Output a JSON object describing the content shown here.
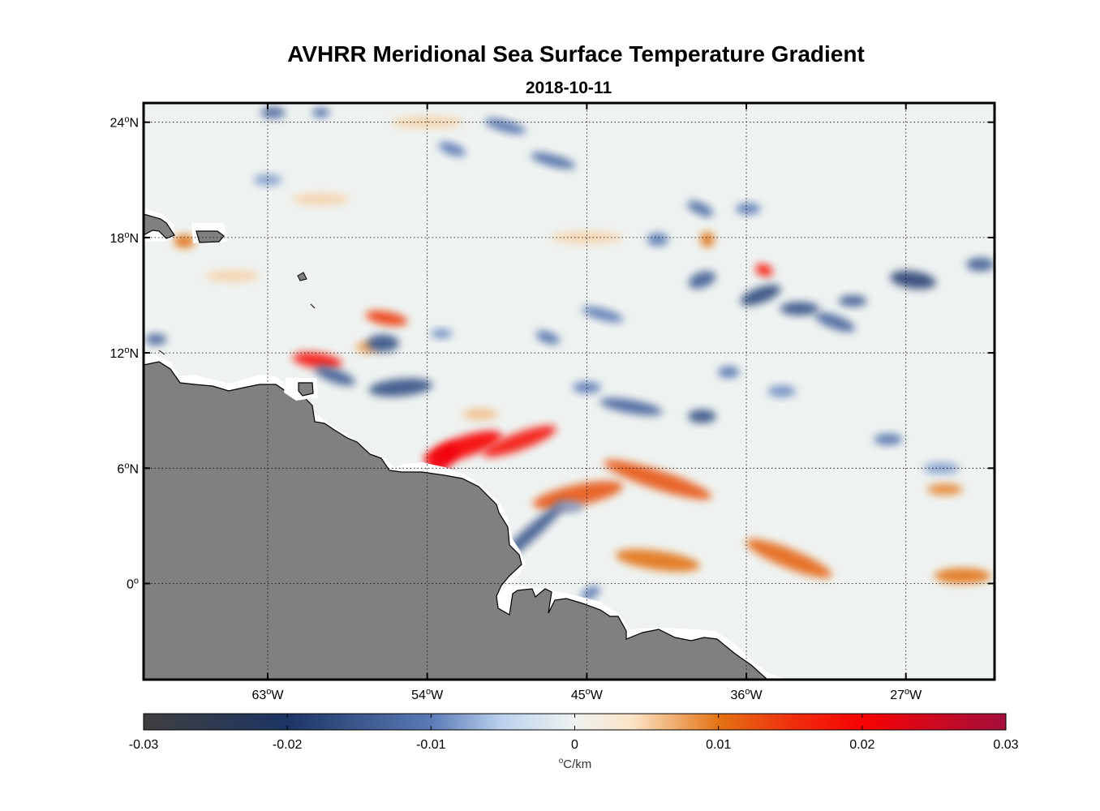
{
  "title": "AVHRR Meridional Sea Surface Temperature Gradient",
  "subtitle": "2018-10-11",
  "map": {
    "lon_range": [
      -70,
      -22
    ],
    "lat_range": [
      -5,
      25
    ],
    "lon_ticks": [
      {
        "value": -63,
        "num": "63",
        "deg": "o",
        "hemi": "W"
      },
      {
        "value": -54,
        "num": "54",
        "deg": "o",
        "hemi": "W"
      },
      {
        "value": -45,
        "num": "45",
        "deg": "o",
        "hemi": "W"
      },
      {
        "value": -36,
        "num": "36",
        "deg": "o",
        "hemi": "W"
      },
      {
        "value": -27,
        "num": "27",
        "deg": "o",
        "hemi": "W"
      }
    ],
    "lat_ticks": [
      {
        "value": 24,
        "num": "24",
        "deg": "o",
        "hemi": "N"
      },
      {
        "value": 18,
        "num": "18",
        "deg": "o",
        "hemi": "N"
      },
      {
        "value": 12,
        "num": "12",
        "deg": "o",
        "hemi": "N"
      },
      {
        "value": 6,
        "num": "6",
        "deg": "o",
        "hemi": "N"
      },
      {
        "value": 0,
        "num": "0",
        "deg": "o",
        "hemi": ""
      }
    ],
    "land_color": "#808080",
    "gradient_features": [
      {
        "lon": -60.2,
        "lat": 11.6,
        "rx": 1.4,
        "ry": 0.4,
        "value": 0.018,
        "angle": -8
      },
      {
        "lon": -56.3,
        "lat": 13.8,
        "rx": 1.2,
        "ry": 0.35,
        "value": 0.014,
        "angle": -10
      },
      {
        "lon": -52.0,
        "lat": 7.1,
        "rx": 2.3,
        "ry": 0.55,
        "value": 0.02,
        "angle": 18
      },
      {
        "lon": -48.8,
        "lat": 7.4,
        "rx": 2.2,
        "ry": 0.45,
        "value": 0.018,
        "angle": 20
      },
      {
        "lon": -53.2,
        "lat": 6.4,
        "rx": 1.2,
        "ry": 0.5,
        "value": 0.021,
        "angle": 45
      },
      {
        "lon": -45.5,
        "lat": 4.6,
        "rx": 2.6,
        "ry": 0.55,
        "value": 0.012,
        "angle": 12
      },
      {
        "lon": -41.0,
        "lat": 5.4,
        "rx": 3.2,
        "ry": 0.5,
        "value": 0.012,
        "angle": -18
      },
      {
        "lon": -41.0,
        "lat": 1.2,
        "rx": 2.4,
        "ry": 0.5,
        "value": 0.01,
        "angle": -8
      },
      {
        "lon": -33.6,
        "lat": 1.3,
        "rx": 2.6,
        "ry": 0.5,
        "value": 0.011,
        "angle": -22
      },
      {
        "lon": -23.8,
        "lat": 0.4,
        "rx": 1.6,
        "ry": 0.4,
        "value": 0.01,
        "angle": 0
      },
      {
        "lon": -24.8,
        "lat": 4.9,
        "rx": 1.0,
        "ry": 0.3,
        "value": 0.009,
        "angle": 0
      },
      {
        "lon": -35.0,
        "lat": 16.3,
        "rx": 0.5,
        "ry": 0.3,
        "value": 0.019,
        "angle": -20
      },
      {
        "lon": -38.2,
        "lat": 17.9,
        "rx": 0.4,
        "ry": 0.4,
        "value": 0.01,
        "angle": 0
      },
      {
        "lon": -67.7,
        "lat": 17.8,
        "rx": 0.6,
        "ry": 0.35,
        "value": 0.01,
        "angle": 0
      },
      {
        "lon": -57.4,
        "lat": 12.3,
        "rx": 0.6,
        "ry": 0.3,
        "value": 0.008,
        "angle": 0
      },
      {
        "lon": -54.0,
        "lat": 24.0,
        "rx": 2.0,
        "ry": 0.3,
        "value": 0.005,
        "angle": 0
      },
      {
        "lon": -60.0,
        "lat": 20.0,
        "rx": 1.6,
        "ry": 0.3,
        "value": 0.005,
        "angle": 0
      },
      {
        "lon": -45.0,
        "lat": 18.0,
        "rx": 2.0,
        "ry": 0.3,
        "value": 0.005,
        "angle": 0
      },
      {
        "lon": -51.0,
        "lat": 8.8,
        "rx": 1.0,
        "ry": 0.3,
        "value": 0.006,
        "angle": 0
      },
      {
        "lon": -65.0,
        "lat": 16.0,
        "rx": 1.5,
        "ry": 0.3,
        "value": 0.005,
        "angle": 0
      },
      {
        "lon": -55.5,
        "lat": 10.2,
        "rx": 1.8,
        "ry": 0.45,
        "value": -0.016,
        "angle": 5
      },
      {
        "lon": -59.2,
        "lat": 10.8,
        "rx": 1.2,
        "ry": 0.35,
        "value": -0.014,
        "angle": -20
      },
      {
        "lon": -56.5,
        "lat": 12.5,
        "rx": 0.9,
        "ry": 0.45,
        "value": -0.016,
        "angle": 0
      },
      {
        "lon": -48.3,
        "lat": 2.5,
        "rx": 2.8,
        "ry": 0.35,
        "value": -0.015,
        "angle": 42
      },
      {
        "lon": -44.8,
        "lat": -0.5,
        "rx": 0.6,
        "ry": 0.3,
        "value": -0.01,
        "angle": 30
      },
      {
        "lon": -35.2,
        "lat": 15.0,
        "rx": 1.2,
        "ry": 0.4,
        "value": -0.017,
        "angle": 20
      },
      {
        "lon": -33.0,
        "lat": 14.3,
        "rx": 1.1,
        "ry": 0.35,
        "value": -0.016,
        "angle": 0
      },
      {
        "lon": -26.6,
        "lat": 15.8,
        "rx": 1.3,
        "ry": 0.45,
        "value": -0.018,
        "angle": -8
      },
      {
        "lon": -22.8,
        "lat": 16.6,
        "rx": 0.8,
        "ry": 0.35,
        "value": -0.014,
        "angle": 0
      },
      {
        "lon": -41.0,
        "lat": 17.9,
        "rx": 0.6,
        "ry": 0.35,
        "value": -0.01,
        "angle": 0
      },
      {
        "lon": -38.5,
        "lat": 15.8,
        "rx": 0.8,
        "ry": 0.4,
        "value": -0.014,
        "angle": 20
      },
      {
        "lon": -31.0,
        "lat": 13.6,
        "rx": 1.2,
        "ry": 0.35,
        "value": -0.013,
        "angle": -20
      },
      {
        "lon": -30.0,
        "lat": 14.7,
        "rx": 0.8,
        "ry": 0.3,
        "value": -0.014,
        "angle": 0
      },
      {
        "lon": -38.6,
        "lat": 19.5,
        "rx": 0.8,
        "ry": 0.3,
        "value": -0.012,
        "angle": -25
      },
      {
        "lon": -35.9,
        "lat": 19.5,
        "rx": 0.7,
        "ry": 0.3,
        "value": -0.01,
        "angle": 0
      },
      {
        "lon": -47.2,
        "lat": 12.8,
        "rx": 0.7,
        "ry": 0.3,
        "value": -0.011,
        "angle": -20
      },
      {
        "lon": -53.2,
        "lat": 13.0,
        "rx": 0.6,
        "ry": 0.25,
        "value": -0.009,
        "angle": 0
      },
      {
        "lon": -44.1,
        "lat": 14.0,
        "rx": 1.2,
        "ry": 0.3,
        "value": -0.01,
        "angle": -15
      },
      {
        "lon": -45.0,
        "lat": 10.2,
        "rx": 0.8,
        "ry": 0.3,
        "value": -0.01,
        "angle": 0
      },
      {
        "lon": -42.5,
        "lat": 9.2,
        "rx": 1.8,
        "ry": 0.35,
        "value": -0.013,
        "angle": -10
      },
      {
        "lon": -38.5,
        "lat": 8.7,
        "rx": 0.8,
        "ry": 0.35,
        "value": -0.016,
        "angle": 0
      },
      {
        "lon": -37.0,
        "lat": 11.0,
        "rx": 0.6,
        "ry": 0.3,
        "value": -0.011,
        "angle": 0
      },
      {
        "lon": -49.6,
        "lat": 23.8,
        "rx": 1.2,
        "ry": 0.3,
        "value": -0.011,
        "angle": -15
      },
      {
        "lon": -52.6,
        "lat": 22.6,
        "rx": 0.8,
        "ry": 0.3,
        "value": -0.01,
        "angle": -20
      },
      {
        "lon": -46.9,
        "lat": 22.0,
        "rx": 1.3,
        "ry": 0.3,
        "value": -0.012,
        "angle": -15
      },
      {
        "lon": -62.7,
        "lat": 24.5,
        "rx": 0.7,
        "ry": 0.3,
        "value": -0.013,
        "angle": 0
      },
      {
        "lon": -60.0,
        "lat": 24.5,
        "rx": 0.5,
        "ry": 0.25,
        "value": -0.012,
        "angle": 0
      },
      {
        "lon": -69.3,
        "lat": 12.7,
        "rx": 0.6,
        "ry": 0.3,
        "value": -0.013,
        "angle": 0
      },
      {
        "lon": -63.0,
        "lat": 21.0,
        "rx": 0.8,
        "ry": 0.3,
        "value": -0.008,
        "angle": 0
      },
      {
        "lon": -28.0,
        "lat": 7.5,
        "rx": 0.8,
        "ry": 0.3,
        "value": -0.011,
        "angle": 0
      },
      {
        "lon": -25.0,
        "lat": 6.0,
        "rx": 1.0,
        "ry": 0.3,
        "value": -0.008,
        "angle": 0
      },
      {
        "lon": -34.0,
        "lat": 10.0,
        "rx": 0.8,
        "ry": 0.3,
        "value": -0.009,
        "angle": 0
      },
      {
        "lon": -46.0,
        "lat": 4.0,
        "rx": 0.8,
        "ry": 0.3,
        "value": -0.008,
        "angle": 0
      }
    ]
  },
  "colorbar": {
    "min": -0.03,
    "max": 0.03,
    "tick_labels": [
      "-0.03",
      "-0.02",
      "-0.01",
      "0",
      "0.01",
      "0.02",
      "0.03"
    ],
    "tick_values": [
      -0.03,
      -0.02,
      -0.01,
      0,
      0.01,
      0.02,
      0.03
    ],
    "unit_deg": "o",
    "unit": "C/km",
    "colors": [
      {
        "value": -0.03,
        "color": "#3f3f3f"
      },
      {
        "value": -0.02,
        "color": "#1c3564"
      },
      {
        "value": -0.01,
        "color": "#5b7ab6"
      },
      {
        "value": -0.005,
        "color": "#bcd3ee"
      },
      {
        "value": 0,
        "color": "#eef2f0"
      },
      {
        "value": 0.004,
        "color": "#fbe4c6"
      },
      {
        "value": 0.01,
        "color": "#e37314"
      },
      {
        "value": 0.015,
        "color": "#f0300e"
      },
      {
        "value": 0.02,
        "color": "#f80202"
      },
      {
        "value": 0.03,
        "color": "#a30f3c"
      }
    ]
  }
}
